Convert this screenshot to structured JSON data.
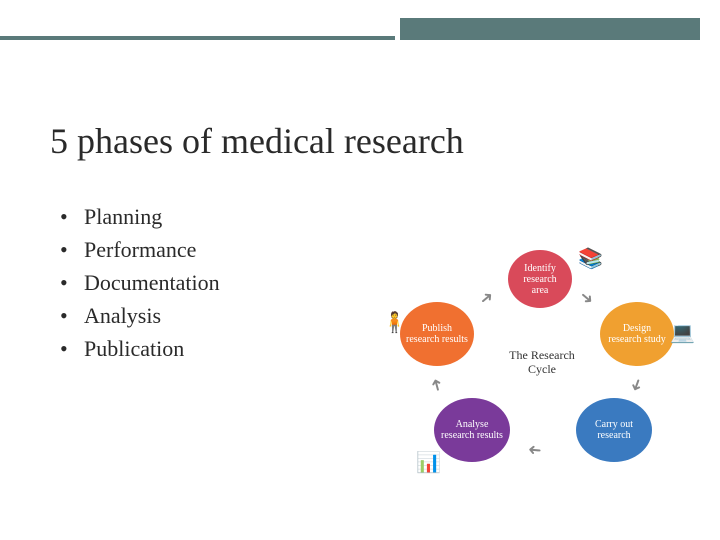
{
  "title": "5 phases of medical research",
  "bullets": {
    "b0": "Planning",
    "b1": "Performance",
    "b2": "Documentation",
    "b3": "Analysis",
    "b4": "Publication"
  },
  "cycle": {
    "center": "The Research Cycle",
    "nodes": {
      "top": {
        "label": "Identify research area",
        "color": "#d94a5a"
      },
      "right": {
        "label": "Design research study",
        "color": "#f0a030"
      },
      "br": {
        "label": "Carry out research",
        "color": "#3a7ac0"
      },
      "bl": {
        "label": "Analyse research results",
        "color": "#7a3a9a"
      },
      "left": {
        "label": "Publish research results",
        "color": "#f07030"
      }
    },
    "arrow_color": "#888888"
  },
  "header_bar_color": "#5a7a7a",
  "background_color": "#ffffff",
  "title_fontsize": 36,
  "bullet_fontsize": 22
}
